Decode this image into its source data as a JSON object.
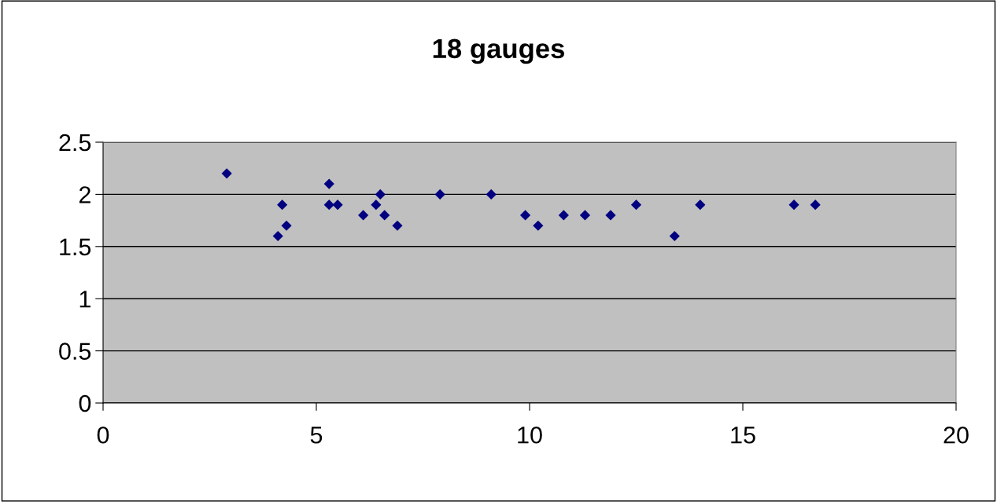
{
  "chart_data": {
    "type": "scatter",
    "title": "18 gauges",
    "x": [
      2.9,
      4.1,
      4.2,
      4.3,
      5.3,
      5.3,
      5.5,
      6.1,
      6.4,
      6.5,
      6.6,
      6.9,
      7.9,
      9.1,
      9.9,
      10.2,
      10.8,
      11.3,
      11.9,
      12.5,
      13.4,
      14.0,
      16.2,
      16.7
    ],
    "values": [
      2.2,
      1.6,
      1.9,
      1.7,
      2.1,
      1.9,
      1.9,
      1.8,
      1.9,
      2.0,
      1.8,
      1.7,
      2.0,
      2.0,
      1.8,
      1.7,
      1.8,
      1.8,
      1.8,
      1.9,
      1.6,
      1.9,
      1.9,
      1.9
    ],
    "color": "#000080",
    "marker": "diamond",
    "xlim": [
      0,
      20
    ],
    "xticks": [
      0,
      5,
      10,
      15,
      20
    ],
    "ylim": [
      0,
      2.5
    ],
    "yticks": [
      0,
      0.5,
      1,
      1.5,
      2,
      2.5
    ],
    "grid": "y"
  }
}
